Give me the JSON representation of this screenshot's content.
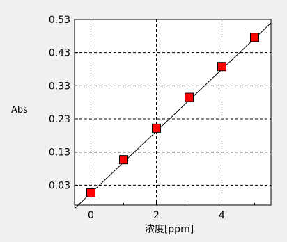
{
  "chart_data": {
    "type": "scatter",
    "title": "",
    "xlabel": "浓度[ppm]",
    "ylabel": "Abs",
    "xlim": [
      -0.5,
      5.5
    ],
    "ylim": [
      -0.03,
      0.53
    ],
    "x_ticks": [
      0,
      2,
      4
    ],
    "y_ticks": [
      0.03,
      0.13,
      0.23,
      0.33,
      0.43,
      0.53
    ],
    "x_tick_labels": [
      "0",
      "2",
      "4"
    ],
    "y_tick_labels": [
      "0.03",
      "0.13",
      "0.23",
      "0.33",
      "0.43",
      "0.53"
    ],
    "grid": true,
    "series": [
      {
        "marker": "square",
        "marker_color": "#ff0000",
        "x": [
          0,
          1,
          2,
          3,
          4,
          5
        ],
        "y": [
          0.007,
          0.107,
          0.202,
          0.295,
          0.388,
          0.476
        ]
      }
    ],
    "fit_line": {
      "x": [
        -0.5,
        5.5
      ],
      "y": [
        -0.0405,
        0.5195
      ],
      "color": "#000000"
    }
  }
}
